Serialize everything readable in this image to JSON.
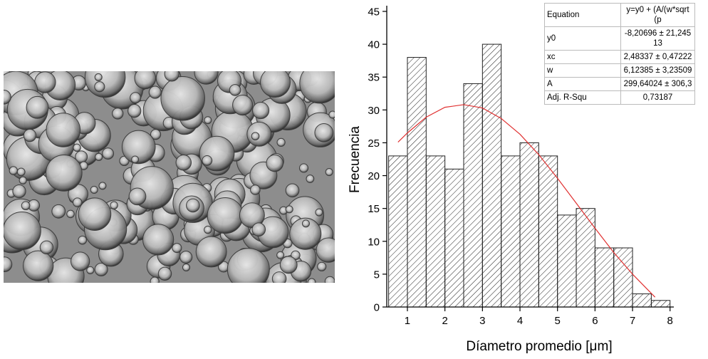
{
  "chart_data": {
    "type": "histogram",
    "bins": [
      0.5,
      1,
      1.5,
      2,
      2.5,
      3,
      3.5,
      4,
      4.5,
      5,
      5.5,
      6,
      6.5,
      7,
      7.5,
      8
    ],
    "values": [
      23,
      38,
      23,
      21,
      34,
      40,
      23,
      25,
      23,
      14,
      15,
      9,
      9,
      2,
      1
    ],
    "color": "#222222",
    "hatch": true,
    "xlabel": "Díametro promedio [μm]",
    "ylabel": "Frecuencia",
    "xlim": [
      0.45,
      8.1
    ],
    "xticks": [
      1,
      2,
      3,
      4,
      5,
      6,
      7,
      8
    ],
    "ylim": [
      0,
      45
    ],
    "yticks": [
      0,
      5,
      10,
      15,
      20,
      25,
      30,
      35,
      40,
      45
    ],
    "fit": {
      "color": "#e03030",
      "x": [
        0.75,
        1,
        1.5,
        2,
        2.5,
        3,
        3.5,
        4,
        4.5,
        5,
        5.5,
        6,
        6.5,
        7,
        7.6
      ],
      "y": [
        25.1,
        26.5,
        28.9,
        30.4,
        30.8,
        30.3,
        28.7,
        26.3,
        23.2,
        19.6,
        15.8,
        12.0,
        8.3,
        5.0,
        1.5
      ]
    },
    "fit_table": [
      [
        "Equation",
        "y=y0 + (A/(w*sqrt(p"
      ],
      [
        "y0",
        "-8,20696 ± 21,24513"
      ],
      [
        "xc",
        "2,48337 ± 0,47222"
      ],
      [
        "w",
        "6,12385 ± 3,23509"
      ],
      [
        "A",
        "299,64024 ± 306,3"
      ],
      [
        "Adj. R-Squ",
        "0,73187"
      ]
    ]
  }
}
